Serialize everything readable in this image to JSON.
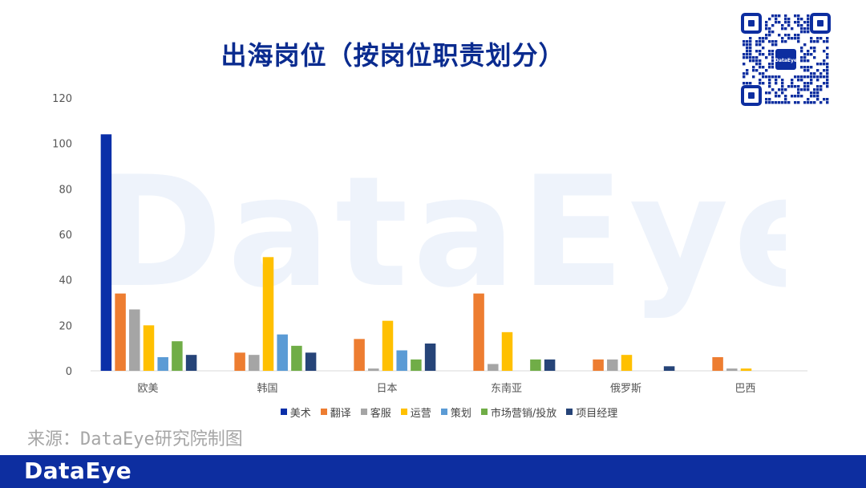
{
  "title": "出海岗位（按岗位职责划分）",
  "watermark": "DataEye",
  "source": "来源：DataEye研究院制图",
  "footer_logo": "DataEye",
  "qr_center_label": "DataEye",
  "colors": {
    "title": "#0a2b8f",
    "footer": "#0d2ea0",
    "series": [
      "#0a2fa8",
      "#ed7d31",
      "#a5a5a5",
      "#ffc000",
      "#5b9bd5",
      "#70ad47",
      "#264478"
    ]
  },
  "chart_data": {
    "type": "bar",
    "categories": [
      "欧美",
      "韩国",
      "日本",
      "东南亚",
      "俄罗斯",
      "巴西"
    ],
    "ylim": [
      0,
      120
    ],
    "yticks": [
      "0",
      "20",
      "40",
      "60",
      "80",
      "100",
      "120"
    ],
    "legend_position": "bottom",
    "grid": false,
    "series": [
      {
        "name": "美术",
        "values": [
          104,
          0,
          0,
          0,
          0,
          0
        ]
      },
      {
        "name": "翻译",
        "values": [
          34,
          8,
          14,
          34,
          5,
          6
        ]
      },
      {
        "name": "客服",
        "values": [
          27,
          7,
          1,
          3,
          5,
          1
        ]
      },
      {
        "name": "运营",
        "values": [
          20,
          50,
          22,
          17,
          7,
          1
        ]
      },
      {
        "name": "策划",
        "values": [
          6,
          16,
          9,
          0,
          0,
          0
        ]
      },
      {
        "name": "市场营销/投放",
        "values": [
          13,
          11,
          5,
          5,
          0,
          0
        ]
      },
      {
        "name": "项目经理",
        "values": [
          7,
          8,
          12,
          5,
          2,
          0
        ]
      }
    ]
  }
}
